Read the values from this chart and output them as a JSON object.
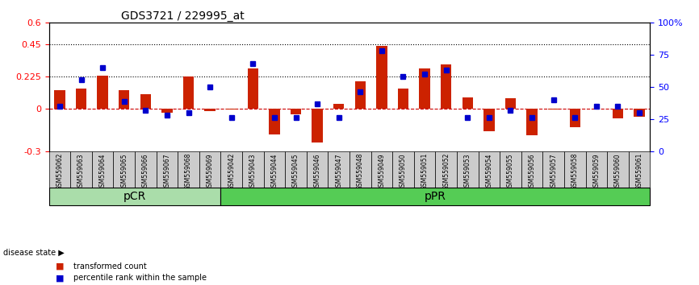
{
  "title": "GDS3721 / 229995_at",
  "samples": [
    "GSM559062",
    "GSM559063",
    "GSM559064",
    "GSM559065",
    "GSM559066",
    "GSM559067",
    "GSM559068",
    "GSM559069",
    "GSM559042",
    "GSM559043",
    "GSM559044",
    "GSM559045",
    "GSM559046",
    "GSM559047",
    "GSM559048",
    "GSM559049",
    "GSM559050",
    "GSM559051",
    "GSM559052",
    "GSM559053",
    "GSM559054",
    "GSM559055",
    "GSM559056",
    "GSM559057",
    "GSM559058",
    "GSM559059",
    "GSM559060",
    "GSM559061"
  ],
  "transformed_count": [
    0.13,
    0.14,
    0.23,
    0.13,
    0.1,
    -0.03,
    0.225,
    -0.02,
    -0.01,
    0.28,
    -0.18,
    -0.04,
    -0.24,
    0.03,
    0.19,
    0.44,
    0.14,
    0.28,
    0.31,
    0.08,
    -0.16,
    0.07,
    -0.19,
    -0.01,
    -0.13,
    0.0,
    -0.07,
    -0.06
  ],
  "percentile_rank": [
    35,
    56,
    65,
    39,
    32,
    28,
    30,
    50,
    26,
    68,
    26,
    26,
    37,
    26,
    46,
    78,
    58,
    60,
    63,
    26,
    26,
    32,
    26,
    40,
    26,
    35,
    35,
    30
  ],
  "pCR_count": 8,
  "pPR_count": 20,
  "bar_color": "#cc2200",
  "dot_color": "#0000cc",
  "zero_line_color": "#cc0000",
  "dotted_line_color": "#000000",
  "ylim": [
    -0.3,
    0.6
  ],
  "yticks_left": [
    -0.3,
    0,
    0.225,
    0.45,
    0.6
  ],
  "yticks_left_labels": [
    "-0.3",
    "0",
    "0.225",
    "0.45",
    "0.6"
  ],
  "yticks_right": [
    0,
    25,
    50,
    75,
    100
  ],
  "yticks_right_labels": [
    "0",
    "25",
    "50",
    "75",
    "100%"
  ],
  "dotted_lines": [
    0.225,
    0.45
  ],
  "pcr_color": "#aaddaa",
  "ppr_color": "#55cc55",
  "bar_width": 0.5,
  "label_bg_color": "#cccccc",
  "legend_bar_label": "transformed count",
  "legend_dot_label": "percentile rank within the sample",
  "disease_state_label": "disease state ▶"
}
